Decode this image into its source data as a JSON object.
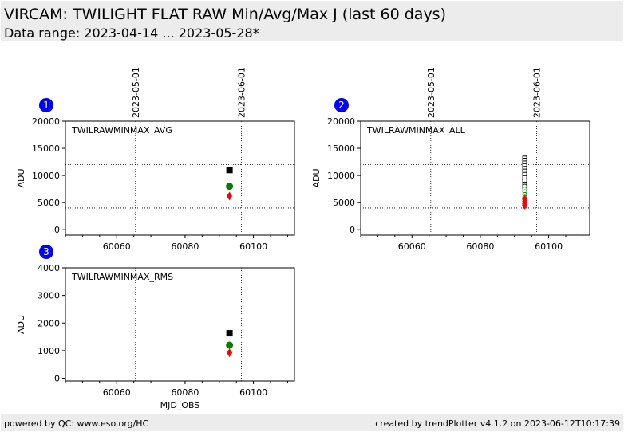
{
  "header": {
    "title": "VIRCAM: TWILIGHT FLAT RAW Min/Avg/Max J (last 60 days)",
    "subtitle": "Data range: 2023-04-14 ... 2023-05-28*"
  },
  "footer": {
    "left": "powered by QC: www.eso.org/HC",
    "right": "created by trendPlotter v4.1.2 on 2023-06-12T10:17:39"
  },
  "colors": {
    "avg": "#000000",
    "min": "#ff0000",
    "mid": "#008000",
    "badge": "#0000ff",
    "panel_bg": "#ececec"
  },
  "chart_data": [
    {
      "id": 1,
      "badge": "1",
      "type": "scatter",
      "label": "TWILRAWMINMAX_AVG",
      "xlabel": "",
      "ylabel": "ADU",
      "xlim": [
        60045,
        60112
      ],
      "ylim": [
        -1000,
        20000
      ],
      "xticks": [
        60060,
        60080,
        60100
      ],
      "yticks": [
        0,
        5000,
        10000,
        15000,
        20000
      ],
      "date_ticks": [
        {
          "x": 60065.5,
          "label": "2023-05-01"
        },
        {
          "x": 60096.5,
          "label": "2023-06-01"
        }
      ],
      "hlines": [
        12000,
        4000
      ],
      "series": [
        {
          "marker": "square",
          "color": "#000000",
          "points": [
            [
              60093,
              11000
            ]
          ]
        },
        {
          "marker": "circle",
          "color": "#008000",
          "points": [
            [
              60093,
              8000
            ]
          ]
        },
        {
          "marker": "diamond",
          "color": "#ff0000",
          "points": [
            [
              60093,
              6200
            ]
          ]
        }
      ]
    },
    {
      "id": 2,
      "badge": "2",
      "type": "scatter",
      "label": "TWILRAWMINMAX_ALL",
      "xlabel": "",
      "ylabel": "ADU",
      "xlim": [
        60045,
        60112
      ],
      "ylim": [
        -1000,
        20000
      ],
      "xticks": [
        60060,
        60080,
        60100
      ],
      "yticks": [
        0,
        5000,
        10000,
        15000,
        20000
      ],
      "date_ticks": [
        {
          "x": 60065.5,
          "label": "2023-05-01"
        },
        {
          "x": 60096.5,
          "label": "2023-06-01"
        }
      ],
      "hlines": [
        12000,
        4000
      ],
      "series": [
        {
          "marker": "open-square",
          "color": "#000000",
          "points": [
            [
              60093,
              13200
            ],
            [
              60093,
              12800
            ],
            [
              60093,
              12300
            ],
            [
              60093,
              11800
            ],
            [
              60093,
              11300
            ],
            [
              60093,
              10800
            ],
            [
              60093,
              10200
            ],
            [
              60093,
              9600
            ],
            [
              60093,
              9000
            ],
            [
              60093,
              8400
            ],
            [
              60093,
              8000
            ]
          ]
        },
        {
          "marker": "open-circle",
          "color": "#008000",
          "points": [
            [
              60093,
              8000
            ],
            [
              60093,
              7500
            ],
            [
              60093,
              7000
            ],
            [
              60093,
              6500
            ],
            [
              60093,
              6000
            ]
          ]
        },
        {
          "marker": "diamond",
          "color": "#ff0000",
          "points": [
            [
              60093,
              5600
            ],
            [
              60093,
              5200
            ],
            [
              60093,
              4800
            ],
            [
              60093,
              4500
            ]
          ]
        }
      ]
    },
    {
      "id": 3,
      "badge": "3",
      "type": "scatter",
      "label": "TWILRAWMINMAX_RMS",
      "xlabel": "MJD_OBS",
      "ylabel": "ADU",
      "xlim": [
        60045,
        60112
      ],
      "ylim": [
        -100,
        4000
      ],
      "xticks": [
        60060,
        60080,
        60100
      ],
      "yticks": [
        0,
        1000,
        2000,
        3000,
        4000
      ],
      "date_ticks": [
        {
          "x": 60065.5,
          "label": ""
        },
        {
          "x": 60096.5,
          "label": ""
        }
      ],
      "hlines": [],
      "series": [
        {
          "marker": "square",
          "color": "#000000",
          "points": [
            [
              60093,
              1630
            ]
          ]
        },
        {
          "marker": "circle",
          "color": "#008000",
          "points": [
            [
              60093,
              1200
            ]
          ]
        },
        {
          "marker": "diamond",
          "color": "#ff0000",
          "points": [
            [
              60093,
              920
            ]
          ]
        }
      ]
    }
  ]
}
